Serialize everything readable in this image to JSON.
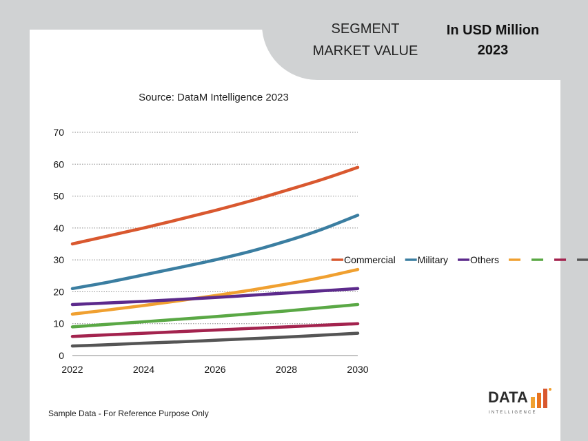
{
  "header": {
    "segment_title": "SEGMENT\nMARKET VALUE",
    "unit_title": "In USD Million\n2023"
  },
  "footer": {
    "note": "Sample Data - For Reference Purpose Only",
    "logo_word": "DATA",
    "logo_sub": "INTELLIGENCE"
  },
  "chart_data": {
    "type": "line",
    "title": "Source: DataM Intelligence 2023",
    "x": [
      2022,
      2023,
      2024,
      2025,
      2026,
      2027,
      2028,
      2029,
      2030
    ],
    "x_ticks": [
      "2022",
      "2024",
      "2026",
      "2028",
      "2030"
    ],
    "y_ticks": [
      "0",
      "10",
      "20",
      "30",
      "40",
      "50",
      "60",
      "70"
    ],
    "ylim": [
      0,
      70
    ],
    "grid": true,
    "legend_position": "right",
    "series": [
      {
        "name": "Commercial",
        "color": "#d9582f",
        "values": [
          35,
          37.5,
          40,
          42.7,
          45.5,
          48.5,
          51.8,
          55.2,
          59
        ]
      },
      {
        "name": "Military",
        "color": "#3b7ea1",
        "values": [
          21,
          23,
          25.3,
          27.6,
          30,
          32.7,
          35.9,
          39.6,
          44
        ]
      },
      {
        "name": "Others",
        "color": "#5c2a8c",
        "values": [
          16,
          16.5,
          17,
          17.6,
          18.2,
          18.9,
          19.6,
          20.3,
          21
        ]
      },
      {
        "name": "",
        "color": "#f0a030",
        "values": [
          13,
          14.3,
          15.7,
          17.2,
          18.8,
          20.5,
          22.4,
          24.5,
          27
        ]
      },
      {
        "name": "",
        "color": "#5aa845",
        "values": [
          9,
          9.8,
          10.6,
          11.4,
          12.2,
          13.1,
          14,
          15,
          16
        ]
      },
      {
        "name": "",
        "color": "#a3234e",
        "values": [
          6,
          6.5,
          7,
          7.5,
          8,
          8.5,
          9,
          9.5,
          10
        ]
      },
      {
        "name": "",
        "color": "#555555",
        "values": [
          3,
          3.4,
          3.9,
          4.3,
          4.8,
          5.3,
          5.8,
          6.4,
          7
        ]
      }
    ]
  }
}
